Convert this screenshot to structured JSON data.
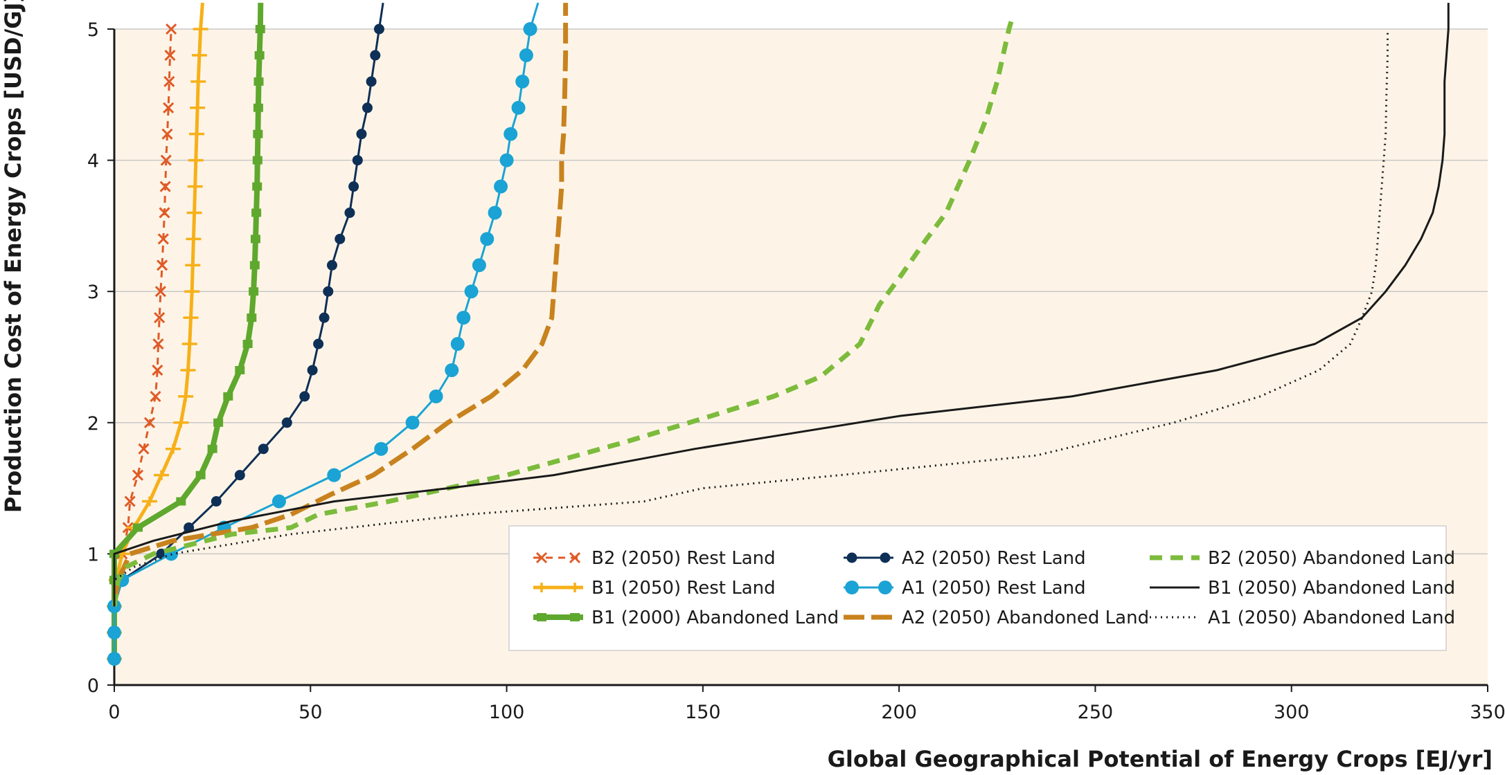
{
  "chart_data": {
    "type": "line",
    "xlabel": "Global Geographical Potential of Energy Crops [EJ/yr]",
    "ylabel": "Production Cost of Energy Crops [USD/GJ]",
    "xlim": [
      0,
      350
    ],
    "ylim": [
      0,
      5
    ],
    "xticks": [
      "0",
      "50",
      "100",
      "150",
      "200",
      "250",
      "300",
      "350"
    ],
    "yticks": [
      "0",
      "1",
      "2",
      "3",
      "4",
      "5"
    ],
    "grid": "horizontal",
    "legend_position": "bottom-right",
    "background_color": "#fdf4e7",
    "series": [
      {
        "name": "B2 (2050) Rest Land",
        "color": "#e05a26",
        "style": "dashed-x",
        "points": [
          [
            0,
            0.2
          ],
          [
            0,
            0.4
          ],
          [
            0,
            0.6
          ],
          [
            0.5,
            0.8
          ],
          [
            2,
            1.0
          ],
          [
            3.5,
            1.2
          ],
          [
            4,
            1.4
          ],
          [
            6,
            1.6
          ],
          [
            7.5,
            1.8
          ],
          [
            9,
            2.0
          ],
          [
            10.5,
            2.2
          ],
          [
            11,
            2.4
          ],
          [
            11.2,
            2.6
          ],
          [
            11.5,
            2.8
          ],
          [
            11.8,
            3.0
          ],
          [
            12.2,
            3.2
          ],
          [
            12.5,
            3.4
          ],
          [
            12.8,
            3.6
          ],
          [
            13,
            3.8
          ],
          [
            13.2,
            4.0
          ],
          [
            13.5,
            4.2
          ],
          [
            13.8,
            4.4
          ],
          [
            14,
            4.6
          ],
          [
            14.2,
            4.8
          ],
          [
            14.5,
            5.0
          ]
        ]
      },
      {
        "name": "B1 (2050) Rest Land",
        "color": "#f6b019",
        "style": "solid-plus",
        "points": [
          [
            0,
            0.2
          ],
          [
            0,
            0.4
          ],
          [
            0,
            0.6
          ],
          [
            0.5,
            0.8
          ],
          [
            2,
            1.0
          ],
          [
            5,
            1.2
          ],
          [
            9,
            1.4
          ],
          [
            12,
            1.6
          ],
          [
            15,
            1.8
          ],
          [
            17,
            2.0
          ],
          [
            18.2,
            2.2
          ],
          [
            18.8,
            2.4
          ],
          [
            19.2,
            2.6
          ],
          [
            19.5,
            2.8
          ],
          [
            19.8,
            3.0
          ],
          [
            20,
            3.2
          ],
          [
            20.2,
            3.4
          ],
          [
            20.4,
            3.6
          ],
          [
            20.6,
            3.8
          ],
          [
            20.8,
            4.0
          ],
          [
            21,
            4.2
          ],
          [
            21.2,
            4.4
          ],
          [
            21.4,
            4.6
          ],
          [
            21.7,
            4.8
          ],
          [
            22,
            5.0
          ],
          [
            22.5,
            5.2
          ]
        ]
      },
      {
        "name": "B1 (2000) Abandoned Land",
        "color": "#5fa82e",
        "style": "thick-tick",
        "points": [
          [
            0,
            0.2
          ],
          [
            0,
            0.4
          ],
          [
            0,
            0.6
          ],
          [
            0,
            0.8
          ],
          [
            0,
            1.0
          ],
          [
            6,
            1.2
          ],
          [
            17,
            1.4
          ],
          [
            22,
            1.6
          ],
          [
            25,
            1.8
          ],
          [
            26.5,
            2.0
          ],
          [
            29,
            2.2
          ],
          [
            32,
            2.4
          ],
          [
            34,
            2.6
          ],
          [
            35,
            2.8
          ],
          [
            35.5,
            3.0
          ],
          [
            35.8,
            3.2
          ],
          [
            36,
            3.4
          ],
          [
            36.2,
            3.6
          ],
          [
            36.4,
            3.8
          ],
          [
            36.5,
            4.0
          ],
          [
            36.6,
            4.2
          ],
          [
            36.7,
            4.4
          ],
          [
            36.8,
            4.6
          ],
          [
            37,
            4.8
          ],
          [
            37.2,
            5.0
          ],
          [
            37.3,
            5.2
          ]
        ]
      },
      {
        "name": "A2 (2050) Rest Land",
        "color": "#0e2f56",
        "style": "solid-dot",
        "points": [
          [
            0,
            0.2
          ],
          [
            0,
            0.4
          ],
          [
            0,
            0.6
          ],
          [
            2,
            0.8
          ],
          [
            12,
            1.0
          ],
          [
            19,
            1.2
          ],
          [
            26,
            1.4
          ],
          [
            32,
            1.6
          ],
          [
            38,
            1.8
          ],
          [
            44,
            2.0
          ],
          [
            48.5,
            2.2
          ],
          [
            50.5,
            2.4
          ],
          [
            52,
            2.6
          ],
          [
            53.5,
            2.8
          ],
          [
            54.5,
            3.0
          ],
          [
            55.5,
            3.2
          ],
          [
            57.5,
            3.4
          ],
          [
            60,
            3.6
          ],
          [
            61,
            3.8
          ],
          [
            62,
            4.0
          ],
          [
            63,
            4.2
          ],
          [
            64.5,
            4.4
          ],
          [
            65.5,
            4.6
          ],
          [
            66.5,
            4.8
          ],
          [
            67.5,
            5.0
          ],
          [
            68.5,
            5.2
          ]
        ]
      },
      {
        "name": "A1 (2050) Rest Land",
        "color": "#1aa3d4",
        "style": "solid-bigdot",
        "points": [
          [
            0,
            0.2
          ],
          [
            0,
            0.4
          ],
          [
            0,
            0.6
          ],
          [
            2,
            0.8
          ],
          [
            14.5,
            1.0
          ],
          [
            28,
            1.2
          ],
          [
            42,
            1.4
          ],
          [
            56,
            1.6
          ],
          [
            68,
            1.8
          ],
          [
            76,
            2.0
          ],
          [
            82,
            2.2
          ],
          [
            86,
            2.4
          ],
          [
            87.5,
            2.6
          ],
          [
            89,
            2.8
          ],
          [
            91,
            3.0
          ],
          [
            93,
            3.2
          ],
          [
            95,
            3.4
          ],
          [
            97,
            3.6
          ],
          [
            98.5,
            3.8
          ],
          [
            100,
            4.0
          ],
          [
            101,
            4.2
          ],
          [
            103,
            4.4
          ],
          [
            104,
            4.6
          ],
          [
            105,
            4.8
          ],
          [
            106,
            5.0
          ],
          [
            108,
            5.2
          ]
        ]
      },
      {
        "name": "A2 (2050) Abandoned Land",
        "color": "#c8821e",
        "style": "longdash",
        "points": [
          [
            0,
            0.6
          ],
          [
            1,
            0.8
          ],
          [
            4,
            1.0
          ],
          [
            15,
            1.1
          ],
          [
            35,
            1.2
          ],
          [
            45,
            1.3
          ],
          [
            55,
            1.45
          ],
          [
            66,
            1.6
          ],
          [
            76,
            1.8
          ],
          [
            85,
            2.0
          ],
          [
            96,
            2.2
          ],
          [
            104,
            2.4
          ],
          [
            109,
            2.6
          ],
          [
            111.5,
            2.8
          ],
          [
            112,
            3.0
          ],
          [
            112.5,
            3.2
          ],
          [
            113,
            3.4
          ],
          [
            113.5,
            3.6
          ],
          [
            114,
            3.8
          ],
          [
            114,
            4.0
          ],
          [
            114.5,
            4.2
          ],
          [
            114.8,
            4.5
          ],
          [
            115,
            4.8
          ],
          [
            115,
            5.0
          ],
          [
            115,
            5.2
          ]
        ]
      },
      {
        "name": "B2 (2050) Abandoned Land",
        "color": "#7cbb3c",
        "style": "bigdash",
        "points": [
          [
            0,
            0.6
          ],
          [
            1,
            0.8
          ],
          [
            3,
            0.9
          ],
          [
            10,
            1.0
          ],
          [
            30,
            1.15
          ],
          [
            45,
            1.2
          ],
          [
            52,
            1.3
          ],
          [
            70,
            1.4
          ],
          [
            100,
            1.6
          ],
          [
            130,
            1.85
          ],
          [
            152,
            2.05
          ],
          [
            168,
            2.2
          ],
          [
            180,
            2.35
          ],
          [
            190,
            2.6
          ],
          [
            195,
            2.9
          ],
          [
            200,
            3.1
          ],
          [
            207,
            3.4
          ],
          [
            212,
            3.6
          ],
          [
            215,
            3.8
          ],
          [
            218,
            4.0
          ],
          [
            222,
            4.3
          ],
          [
            225,
            4.6
          ],
          [
            228,
            5.0
          ],
          [
            229,
            5.1
          ]
        ]
      },
      {
        "name": "B1 (2050) Abandoned Land",
        "color": "#1a1a1a",
        "style": "solid",
        "points": [
          [
            0,
            0.6
          ],
          [
            0,
            0.8
          ],
          [
            0,
            1.0
          ],
          [
            10,
            1.1
          ],
          [
            30,
            1.25
          ],
          [
            56,
            1.4
          ],
          [
            85,
            1.5
          ],
          [
            112,
            1.6
          ],
          [
            148,
            1.8
          ],
          [
            200,
            2.05
          ],
          [
            244,
            2.2
          ],
          [
            281,
            2.4
          ],
          [
            306,
            2.6
          ],
          [
            318,
            2.8
          ],
          [
            324,
            3.0
          ],
          [
            329,
            3.2
          ],
          [
            333,
            3.4
          ],
          [
            336,
            3.6
          ],
          [
            337.5,
            3.8
          ],
          [
            338.5,
            4.0
          ],
          [
            339,
            4.2
          ],
          [
            339,
            4.4
          ],
          [
            339,
            4.6
          ],
          [
            339.5,
            4.8
          ],
          [
            340,
            5.0
          ],
          [
            340,
            5.2
          ]
        ]
      },
      {
        "name": "A1 (2050) Abandoned Land",
        "color": "#1a1a1a",
        "style": "dotted",
        "points": [
          [
            0,
            0.6
          ],
          [
            0,
            0.8
          ],
          [
            5,
            0.9
          ],
          [
            15,
            1.0
          ],
          [
            45,
            1.15
          ],
          [
            90,
            1.3
          ],
          [
            135,
            1.4
          ],
          [
            150,
            1.5
          ],
          [
            185,
            1.6
          ],
          [
            235,
            1.75
          ],
          [
            270,
            2.0
          ],
          [
            292,
            2.2
          ],
          [
            307,
            2.4
          ],
          [
            315,
            2.6
          ],
          [
            318,
            2.8
          ],
          [
            320.5,
            3.0
          ],
          [
            321.5,
            3.2
          ],
          [
            322,
            3.4
          ],
          [
            322.5,
            3.6
          ],
          [
            323,
            3.8
          ],
          [
            323.5,
            4.0
          ],
          [
            324,
            4.2
          ],
          [
            324.2,
            4.5
          ],
          [
            324.5,
            4.8
          ],
          [
            324.5,
            5.0
          ]
        ]
      }
    ]
  }
}
